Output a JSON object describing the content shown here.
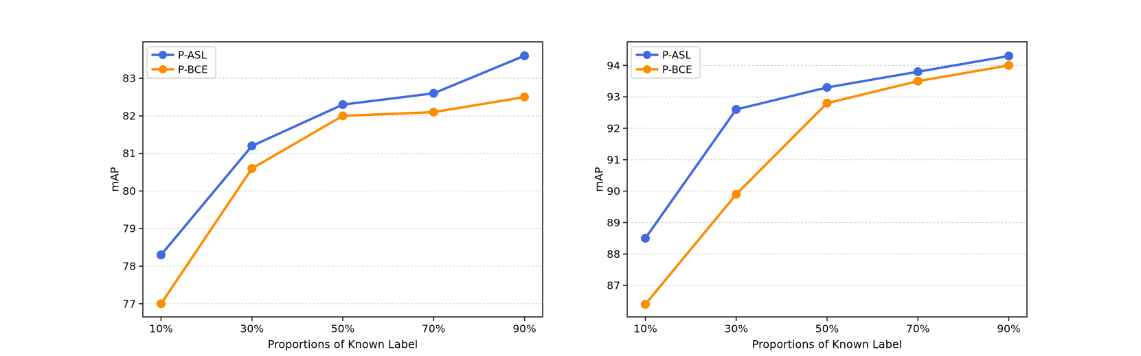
{
  "figure": {
    "background": "#ffffff",
    "panels": [
      "left",
      "right"
    ]
  },
  "colors": {
    "p_asl": "#4169E1",
    "p_bce": "#FF8C00",
    "grid": "#cbcbcb",
    "spine": "#262626",
    "text": "#000000",
    "legend_border": "#cccccc",
    "legend_fill": "#ffffff"
  },
  "chart_data": [
    {
      "type": "line",
      "title": "",
      "xlabel": "Proportions of Known Label",
      "ylabel": "mAP",
      "categories": [
        "10%",
        "30%",
        "50%",
        "70%",
        "90%"
      ],
      "x": [
        10,
        30,
        50,
        70,
        90
      ],
      "xlim": [
        6,
        94
      ],
      "ylim": [
        76.65,
        83.97
      ],
      "yticks": [
        77,
        78,
        79,
        80,
        81,
        82,
        83
      ],
      "grid": "horizontal-dashed",
      "legend_position": "upper-left",
      "series": [
        {
          "name": "P-ASL",
          "color": "#4169E1",
          "marker": "circle",
          "values": [
            78.3,
            81.2,
            82.3,
            82.6,
            83.6
          ]
        },
        {
          "name": "P-BCE",
          "color": "#FF8C00",
          "marker": "circle",
          "values": [
            77.0,
            80.6,
            82.0,
            82.1,
            82.5
          ]
        }
      ]
    },
    {
      "type": "line",
      "title": "",
      "xlabel": "Proportions of Known Label",
      "ylabel": "mAP",
      "categories": [
        "10%",
        "30%",
        "50%",
        "70%",
        "90%"
      ],
      "x": [
        10,
        30,
        50,
        70,
        90
      ],
      "xlim": [
        6,
        94
      ],
      "ylim": [
        86.0,
        94.75
      ],
      "yticks": [
        87,
        88,
        89,
        90,
        91,
        92,
        93,
        94
      ],
      "grid": "horizontal-dashed",
      "legend_position": "upper-left",
      "series": [
        {
          "name": "P-ASL",
          "color": "#4169E1",
          "marker": "circle",
          "values": [
            88.5,
            92.6,
            93.3,
            93.8,
            94.3
          ]
        },
        {
          "name": "P-BCE",
          "color": "#FF8C00",
          "marker": "circle",
          "values": [
            86.4,
            89.9,
            92.8,
            93.5,
            94.0
          ]
        }
      ]
    }
  ]
}
